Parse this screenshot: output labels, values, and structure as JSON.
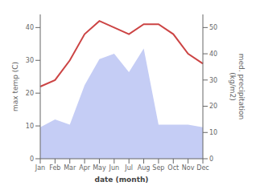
{
  "chart_data": {
    "type": "line",
    "categories": [
      "Jan",
      "Feb",
      "Mar",
      "Apr",
      "May",
      "Jun",
      "Jul",
      "Aug",
      "Sep",
      "Oct",
      "Nov",
      "Dec"
    ],
    "xlabel": "date (month)",
    "ylabel": "max temp (C)",
    "y2label": "med. precipitation\n(kg/m2)",
    "ylim": [
      0,
      44
    ],
    "yticks": [
      0,
      10,
      20,
      30,
      40
    ],
    "y2lim": [
      0,
      55
    ],
    "y2ticks": [
      0,
      10,
      20,
      30,
      40,
      50
    ],
    "series": [
      {
        "type": "area",
        "axis": "y2",
        "color": "#c5cdf5",
        "values": [
          12,
          15,
          13,
          28,
          38,
          40,
          33,
          42,
          13,
          13,
          13,
          12
        ]
      },
      {
        "type": "line",
        "color": "#cc4444",
        "values": [
          22,
          24,
          30,
          38,
          42,
          40,
          38,
          41,
          41,
          38,
          32,
          29
        ]
      }
    ]
  }
}
